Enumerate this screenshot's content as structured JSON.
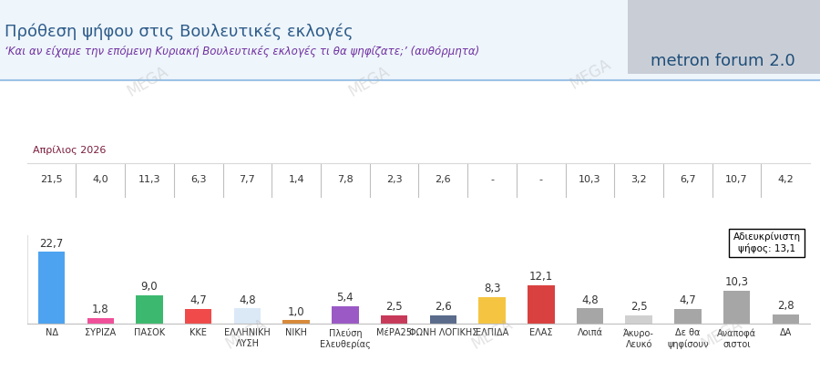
{
  "chart_data": {
    "type": "bar",
    "title": "Πρόθεση ψήφου στις Βουλευτικές εκλογές",
    "subtitle": "‘Και αν είχαμε την επόμενη Κυριακή Βουλευτικές εκλογές τι θα ψηφίζατε;’ (αυθόρμητα)",
    "logo_text": "metron forum 2.0",
    "watermark": "MEGA",
    "categories": [
      "ΝΔ",
      "ΣΥΡΙΖΑ",
      "ΠΑΣΟΚ",
      "ΚΚΕ",
      "ΕΛΛΗΝΙΚΗ\nΛΥΣΗ",
      "ΝΙΚΗ",
      "Πλεύση\nΕλευθερίας",
      "ΜέΡΑ25",
      "ΦΩΝΗ ΛΟΓΙΚΗΣ",
      "ΕΛΠΙΔΑ",
      "ΕΛΑΣ",
      "Λοιπά",
      "Άκυρο-\nΛευκό",
      "Δε θα\nψηφίσουν",
      "Αναποφά\nσιστοι",
      "ΔΑ"
    ],
    "values": [
      22.7,
      1.8,
      9.0,
      4.7,
      4.8,
      1.0,
      5.4,
      2.5,
      2.6,
      8.3,
      12.1,
      4.8,
      2.5,
      4.7,
      10.3,
      2.8
    ],
    "value_labels": [
      "22,7",
      "1,8",
      "9,0",
      "4,7",
      "4,8",
      "1,0",
      "5,4",
      "2,5",
      "2,6",
      "8,3",
      "12,1",
      "4,8",
      "2,5",
      "4,7",
      "10,3",
      "2,8"
    ],
    "colors": [
      "#4da3f0",
      "#f0509a",
      "#3cb96e",
      "#f04a4a",
      "#dbe9f7",
      "#d88a3a",
      "#9b59c6",
      "#c83a5a",
      "#5a6b8c",
      "#f5c542",
      "#d94040",
      "#a6a6a6",
      "#d0d0d0",
      "#a6a6a6",
      "#a6a6a6",
      "#a6a6a6"
    ],
    "comparison": {
      "label": "Απρίλιος 2026",
      "values": [
        21.5,
        4.0,
        11.3,
        6.3,
        7.7,
        1.4,
        7.8,
        2.3,
        2.6,
        null,
        null,
        10.3,
        3.2,
        6.7,
        10.7,
        4.2
      ],
      "value_labels": [
        "21,5",
        "4,0",
        "11,3",
        "6,3",
        "7,7",
        "1,4",
        "7,8",
        "2,3",
        "2,6",
        "-",
        "-",
        "10,3",
        "3,2",
        "6,7",
        "10,7",
        "4,2"
      ]
    },
    "annotations": [
      "Αδιευκρίνιστη\nψήφος: 13,1"
    ],
    "ylim": [
      0,
      28
    ],
    "yticks": [],
    "grid": false,
    "data_labels": true,
    "tick_labels": "x"
  }
}
